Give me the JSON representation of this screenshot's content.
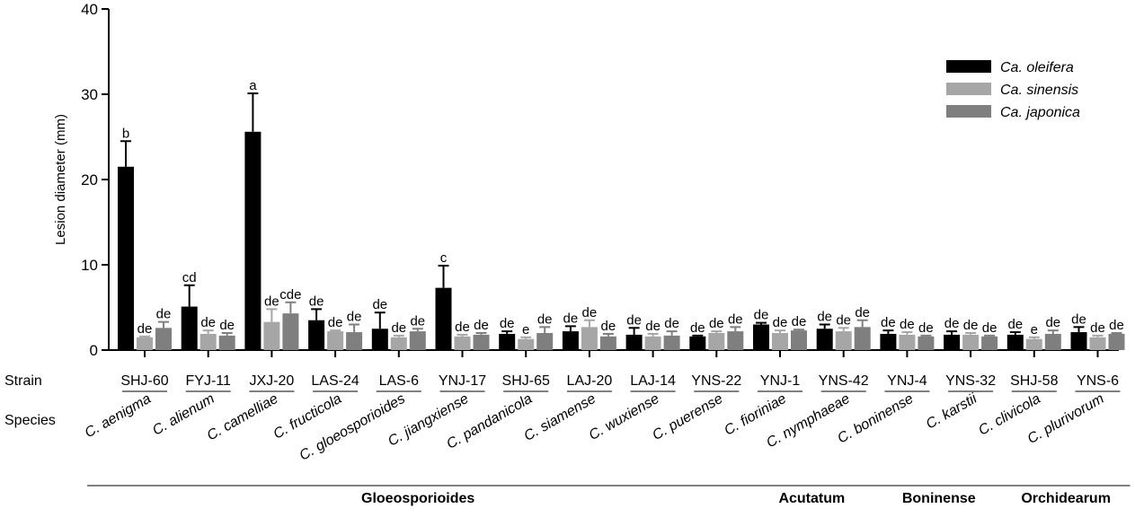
{
  "chart_data": {
    "type": "bar",
    "ylabel": "Lesion diameter (mm)",
    "ylim": [
      0,
      40
    ],
    "yticks": [
      0,
      10,
      20,
      30,
      40
    ],
    "row_labels": {
      "strain": "Strain",
      "species": "Species"
    },
    "legend_placement": "top-right",
    "series": [
      {
        "name": "Ca. oleifera",
        "color": "#000000"
      },
      {
        "name": "Ca. sinensis",
        "color": "#a6a6a6"
      },
      {
        "name": "Ca. japonica",
        "color": "#7f7f7f"
      }
    ],
    "groups": [
      {
        "strain": "SHJ-60",
        "species": "C. aenigma",
        "values": [
          21.5,
          1.5,
          2.6
        ],
        "errors": [
          3.0,
          0.1,
          0.7
        ],
        "letters": [
          "b",
          "de",
          "de"
        ]
      },
      {
        "strain": "FYJ-11",
        "species": "C. alienum",
        "values": [
          5.1,
          1.9,
          1.7
        ],
        "errors": [
          2.5,
          0.4,
          0.3
        ],
        "letters": [
          "cd",
          "de",
          "de"
        ]
      },
      {
        "strain": "JXJ-20",
        "species": "C. camelliae",
        "values": [
          25.6,
          3.3,
          4.3
        ],
        "errors": [
          4.5,
          1.5,
          1.3
        ],
        "letters": [
          "a",
          "de",
          "cde"
        ]
      },
      {
        "strain": "LAS-24",
        "species": "C. fructicola",
        "values": [
          3.5,
          2.2,
          2.1
        ],
        "errors": [
          1.3,
          0.1,
          0.9
        ],
        "letters": [
          "de",
          "de",
          "de"
        ]
      },
      {
        "strain": "LAS-6",
        "species": "C. gloeosporioides",
        "values": [
          2.5,
          1.5,
          2.2
        ],
        "errors": [
          1.9,
          0.2,
          0.3
        ],
        "letters": [
          "de",
          "de",
          "de"
        ]
      },
      {
        "strain": "YNJ-17",
        "species": "C. jiangxiense",
        "values": [
          7.3,
          1.6,
          1.8
        ],
        "errors": [
          2.6,
          0.2,
          0.2
        ],
        "letters": [
          "c",
          "de",
          "de"
        ]
      },
      {
        "strain": "SHJ-65",
        "species": "C. pandanicola",
        "values": [
          1.9,
          1.3,
          2.0
        ],
        "errors": [
          0.3,
          0.2,
          0.7
        ],
        "letters": [
          "de",
          "e",
          "de"
        ]
      },
      {
        "strain": "LAJ-20",
        "species": "C. siamense",
        "values": [
          2.2,
          2.7,
          1.6
        ],
        "errors": [
          0.6,
          0.8,
          0.3
        ],
        "letters": [
          "de",
          "de",
          "de"
        ]
      },
      {
        "strain": "LAJ-14",
        "species": "C. wuxiense",
        "values": [
          1.8,
          1.6,
          1.7
        ],
        "errors": [
          0.8,
          0.3,
          0.5
        ],
        "letters": [
          "de",
          "de",
          "de"
        ]
      },
      {
        "strain": "YNS-22",
        "species": "C. puerense",
        "values": [
          1.6,
          2.0,
          2.2
        ],
        "errors": [
          0.1,
          0.2,
          0.5
        ],
        "letters": [
          "de",
          "de",
          "de"
        ]
      },
      {
        "strain": "YNJ-1",
        "species": "C. fioriniae",
        "values": [
          3.0,
          2.0,
          2.3
        ],
        "errors": [
          0.2,
          0.3,
          0.1
        ],
        "letters": [
          "de",
          "de",
          "de"
        ]
      },
      {
        "strain": "YNS-42",
        "species": "C. nymphaeae",
        "values": [
          2.5,
          2.2,
          2.7
        ],
        "errors": [
          0.5,
          0.4,
          0.8
        ],
        "letters": [
          "de",
          "de",
          "de"
        ]
      },
      {
        "strain": "YNJ-4",
        "species": "C. boninense",
        "values": [
          1.9,
          1.8,
          1.6
        ],
        "errors": [
          0.4,
          0.3,
          0.1
        ],
        "letters": [
          "de",
          "de",
          "de"
        ]
      },
      {
        "strain": "YNS-32",
        "species": "C. karstii",
        "values": [
          1.8,
          1.8,
          1.6
        ],
        "errors": [
          0.4,
          0.2,
          0.1
        ],
        "letters": [
          "de",
          "de",
          "de"
        ]
      },
      {
        "strain": "SHJ-58",
        "species": "C. clivicola",
        "values": [
          1.8,
          1.3,
          1.9
        ],
        "errors": [
          0.3,
          0.2,
          0.4
        ],
        "letters": [
          "de",
          "e",
          "de"
        ]
      },
      {
        "strain": "YNS-6",
        "species": "C. plurivorum",
        "values": [
          2.1,
          1.5,
          1.9
        ],
        "errors": [
          0.6,
          0.2,
          0.1
        ],
        "letters": [
          "de",
          "de",
          "de"
        ]
      }
    ],
    "complexes": [
      {
        "name": "Gloeosporioides",
        "from": 0,
        "to": 9
      },
      {
        "name": "Acutatum",
        "from": 10,
        "to": 11
      },
      {
        "name": "Boninense",
        "from": 12,
        "to": 13
      },
      {
        "name": "Orchidearum",
        "from": 14,
        "to": 15
      }
    ]
  }
}
